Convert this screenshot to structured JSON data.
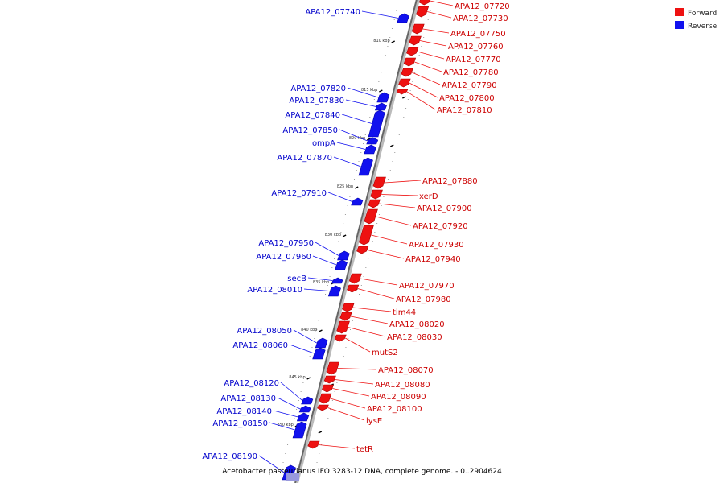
{
  "legend": [
    {
      "label": "Forward",
      "color": "#ee1111"
    },
    {
      "label": "Reverse",
      "color": "#1111ee"
    }
  ],
  "caption": "Acetobacter pasteurianus IFO 3283-12 DNA, complete genome. - 0..2904624",
  "ticks": [
    "810 kbp",
    "815 kbp",
    "820 kbp",
    "825 kbp",
    "830 kbp",
    "835 kbp",
    "840 kbp",
    "845 kbp",
    "850 kbp"
  ],
  "forward_genes": [
    "APA12_07720",
    "APA12_07730",
    "APA12_07750",
    "APA12_07760",
    "APA12_07770",
    "APA12_07780",
    "APA12_07790",
    "APA12_07800",
    "APA12_07810",
    "APA12_07880",
    "xerD",
    "APA12_07900",
    "APA12_07920",
    "APA12_07930",
    "APA12_07940",
    "APA12_07970",
    "APA12_07980",
    "tim44",
    "APA12_08020",
    "APA12_08030",
    "mutS2",
    "APA12_08070",
    "APA12_08080",
    "APA12_08090",
    "APA12_08100",
    "lysE",
    "tetR"
  ],
  "reverse_genes": [
    "APA12_07740",
    "APA12_07820",
    "APA12_07830",
    "APA12_07840",
    "APA12_07850",
    "ompA",
    "APA12_07870",
    "APA12_07910",
    "APA12_07950",
    "APA12_07960",
    "secB",
    "APA12_08010",
    "APA12_08050",
    "APA12_08060",
    "APA12_08120",
    "APA12_08130",
    "APA12_08140",
    "APA12_08150",
    "APA12_08190"
  ]
}
